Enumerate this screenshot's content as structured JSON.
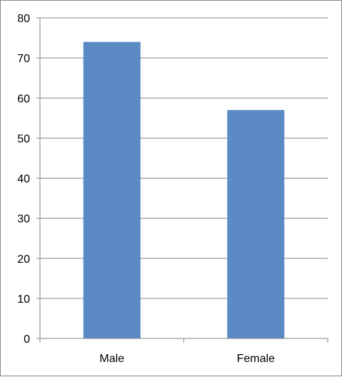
{
  "chart_data": {
    "type": "bar",
    "categories": [
      "Male",
      "Female"
    ],
    "values": [
      74,
      57
    ],
    "ylim": [
      0,
      80
    ],
    "yticks": [
      0,
      10,
      20,
      30,
      40,
      50,
      60,
      70,
      80
    ],
    "grid": true,
    "legend": "none",
    "bar_color": "#5B8AC5",
    "grid_color": "#868686"
  }
}
